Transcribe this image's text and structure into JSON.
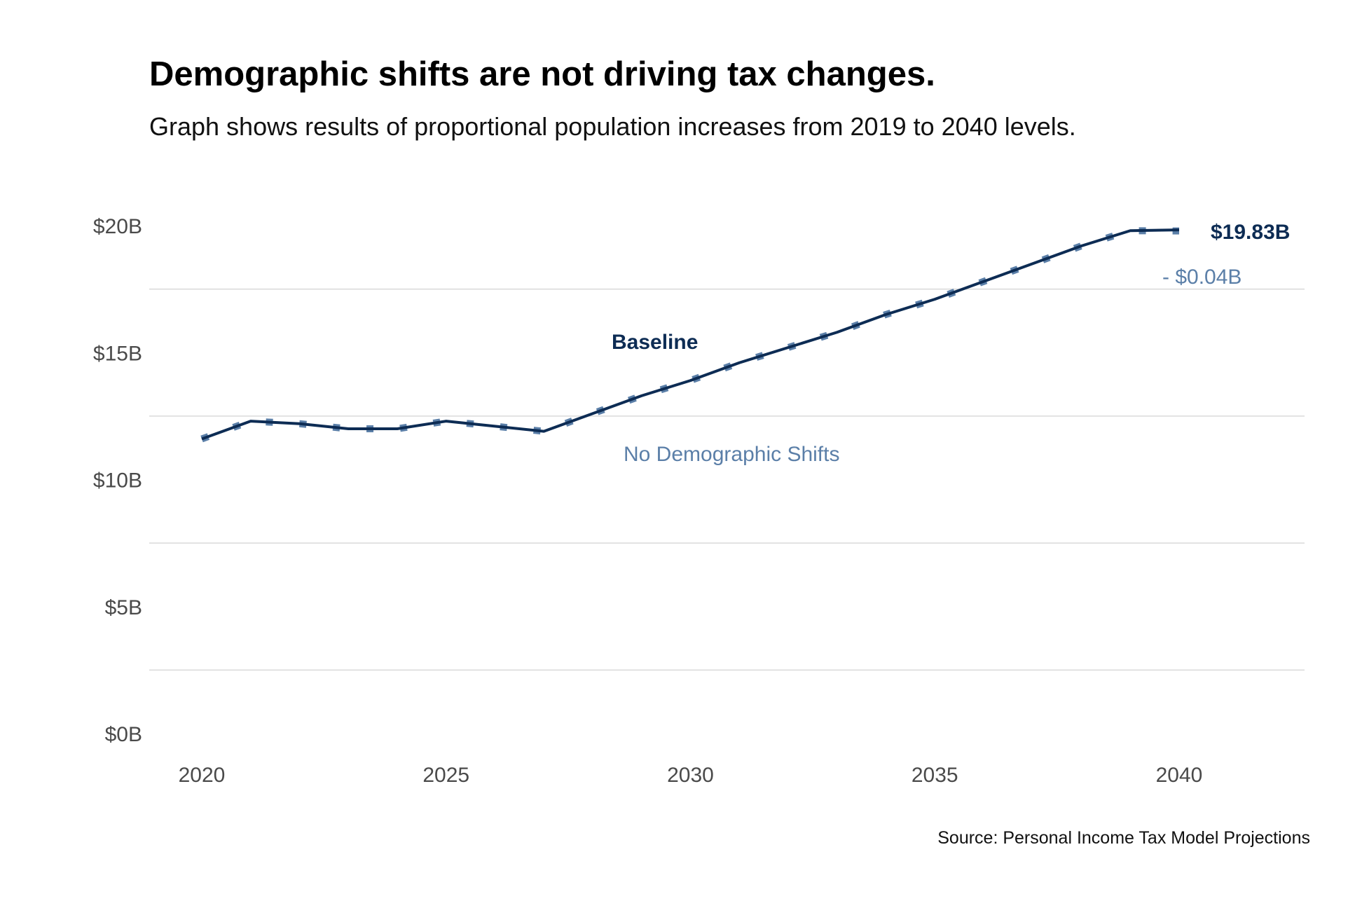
{
  "chart_data": {
    "type": "line",
    "title": "Demographic shifts are not driving tax changes.",
    "subtitle": "Graph shows results of proportional population increases from 2019 to 2040 levels.",
    "source": "Source: Personal Income Tax Model Projections",
    "x": [
      2020,
      2021,
      2022,
      2023,
      2024,
      2025,
      2026,
      2027,
      2028,
      2029,
      2030,
      2031,
      2032,
      2033,
      2034,
      2035,
      2036,
      2037,
      2038,
      2039,
      2040
    ],
    "series": [
      {
        "name": "Baseline",
        "color": "#0d2c54",
        "style": "solid",
        "values": [
          11.6,
          12.3,
          12.2,
          12.0,
          12.0,
          12.3,
          12.1,
          11.9,
          12.6,
          13.3,
          13.9,
          14.6,
          15.2,
          15.8,
          16.5,
          17.1,
          17.8,
          18.5,
          19.2,
          19.8,
          19.83
        ]
      },
      {
        "name": "No Demographic Shifts",
        "color": "#5b7fa8",
        "style": "dashed",
        "values": [
          11.6,
          12.3,
          12.2,
          12.0,
          12.0,
          12.3,
          12.1,
          11.9,
          12.6,
          13.3,
          13.9,
          14.6,
          15.2,
          15.8,
          16.5,
          17.1,
          17.8,
          18.5,
          19.2,
          19.8,
          19.79
        ]
      }
    ],
    "annotations": {
      "end_value_label": "$19.83B",
      "difference_label": "- $0.04B"
    },
    "y_ticks": [
      0,
      5,
      10,
      15,
      20
    ],
    "y_tick_labels": [
      "$0B",
      "$5B",
      "$10B",
      "$15B",
      "$20B"
    ],
    "x_ticks": [
      2020,
      2025,
      2030,
      2035,
      2040
    ],
    "x_tick_labels": [
      "2020",
      "2025",
      "2030",
      "2035",
      "2040"
    ],
    "xlim": [
      2018.9,
      2042.6
    ],
    "ylim": [
      0,
      20
    ],
    "xlabel": "",
    "ylabel": "",
    "grid": true,
    "legend": "direct labels"
  }
}
